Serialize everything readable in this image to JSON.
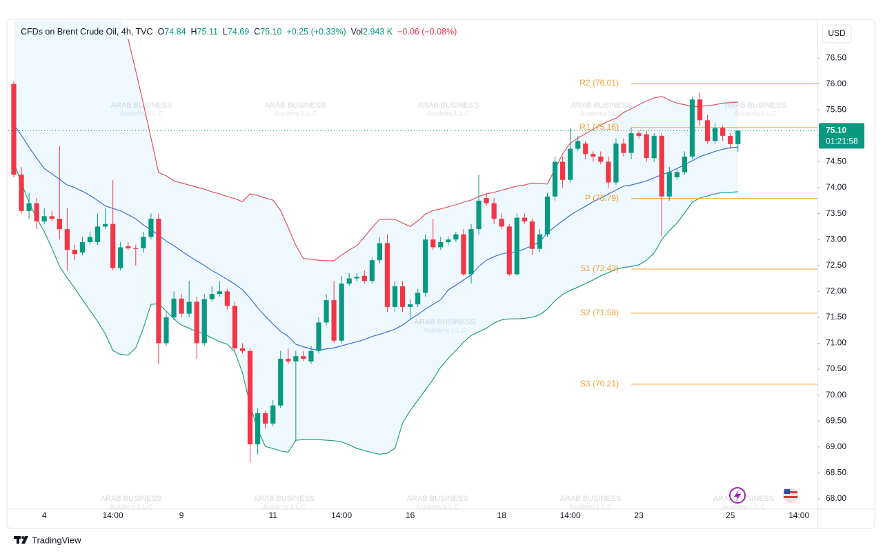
{
  "chart_data": {
    "type": "candlestick",
    "title": "CFDs on Brent Crude Oil, 4h, TVC",
    "stats": [
      {
        "key": "O",
        "value": "74.84",
        "color": "#089981"
      },
      {
        "key": "H",
        "value": "75.11",
        "color": "#089981"
      },
      {
        "key": "L",
        "value": "74.69",
        "color": "#089981"
      },
      {
        "key": "C",
        "value": "75.10",
        "color": "#089981"
      },
      {
        "value": "+0.25 (+0.33%)",
        "color": "#089981"
      },
      {
        "key": "Vol",
        "value": "2.943 K",
        "color": "#089981"
      },
      {
        "value": "−0.06 (−0.08%)",
        "color": "#f23645"
      }
    ],
    "currency": "USD",
    "categories": [
      null,
      null,
      null,
      null,
      "4",
      null,
      null,
      null,
      null,
      null,
      null,
      null,
      null,
      "14:00",
      null,
      null,
      null,
      null,
      null,
      null,
      null,
      null,
      "9",
      null,
      null,
      null,
      null,
      null,
      null,
      null,
      null,
      null,
      null,
      null,
      "11",
      null,
      null,
      null,
      null,
      null,
      null,
      null,
      null,
      "14:00",
      null,
      null,
      null,
      null,
      null,
      null,
      null,
      null,
      "16",
      null,
      null,
      null,
      null,
      null,
      null,
      null,
      null,
      null,
      null,
      null,
      "18",
      null,
      null,
      null,
      null,
      null,
      null,
      null,
      null,
      "14:00",
      null,
      null,
      null,
      null,
      null,
      null,
      null,
      null,
      "23",
      null,
      null,
      null,
      null,
      null,
      null,
      null,
      null,
      null,
      null,
      null,
      "25",
      null,
      null,
      null,
      null,
      null,
      null,
      null,
      null,
      "14:00"
    ],
    "open": [
      76.0,
      74.25,
      73.55,
      73.7,
      73.35,
      73.45,
      73.4,
      73.2,
      72.8,
      72.75,
      72.95,
      72.95,
      73.25,
      73.3,
      72.45,
      72.87,
      72.83,
      72.83,
      73.05,
      73.4,
      71.0,
      71.5,
      71.86,
      71.57,
      71.8,
      71.0,
      71.85,
      71.95,
      72.0,
      71.72,
      70.9,
      70.85,
      69.05,
      69.65,
      69.45,
      69.8,
      70.7,
      70.65,
      70.75,
      70.65,
      70.85,
      71.4,
      71.83,
      71.05,
      72.15,
      72.25,
      72.3,
      72.2,
      72.6,
      72.93,
      71.7,
      72.1,
      71.7,
      71.75,
      71.97,
      73.0,
      72.85,
      72.95,
      73.0,
      73.1,
      72.33,
      73.2,
      73.8,
      73.7,
      73.4,
      73.25,
      72.33,
      73.42,
      73.35,
      72.82,
      73.1,
      73.83,
      74.5,
      74.15,
      74.75,
      74.85,
      74.65,
      74.6,
      74.5,
      74.1,
      74.85,
      74.67,
      75.05,
      75.03,
      74.57,
      75.0,
      73.83,
      74.2,
      74.3,
      74.6,
      75.7,
      75.3,
      74.9,
      75.15,
      75.0,
      74.84,
      null,
      null,
      null,
      null,
      null,
      null,
      null,
      null
    ],
    "high": [
      76.05,
      74.4,
      73.9,
      73.8,
      73.6,
      73.55,
      74.8,
      73.6,
      72.9,
      73.05,
      73.15,
      73.5,
      73.6,
      74.15,
      72.95,
      72.95,
      72.9,
      73.15,
      73.5,
      73.5,
      71.6,
      72.0,
      71.95,
      72.2,
      71.9,
      71.95,
      72.1,
      72.2,
      72.05,
      71.8,
      71.0,
      70.9,
      69.75,
      69.7,
      69.9,
      70.85,
      70.9,
      70.85,
      70.85,
      70.95,
      71.5,
      71.95,
      72.2,
      72.3,
      72.35,
      72.35,
      72.4,
      72.65,
      73.05,
      73.1,
      72.2,
      72.2,
      71.85,
      72.05,
      73.1,
      73.4,
      73.05,
      73.05,
      73.15,
      73.2,
      73.3,
      74.25,
      73.9,
      73.8,
      73.5,
      73.3,
      73.5,
      73.5,
      73.4,
      73.2,
      73.9,
      74.6,
      74.6,
      75.15,
      75.0,
      74.9,
      74.7,
      74.7,
      74.6,
      74.95,
      74.95,
      75.15,
      75.1,
      75.1,
      75.05,
      75.05,
      74.4,
      74.35,
      74.7,
      75.75,
      75.83,
      75.4,
      75.25,
      75.2,
      75.05,
      75.11,
      null,
      null,
      null,
      null,
      null,
      null,
      null,
      null
    ],
    "low": [
      74.2,
      73.5,
      73.4,
      73.2,
      73.3,
      73.35,
      73.0,
      72.4,
      72.6,
      72.7,
      72.9,
      72.9,
      73.2,
      72.4,
      72.4,
      72.8,
      72.5,
      72.75,
      73.0,
      70.6,
      70.95,
      71.45,
      71.5,
      71.5,
      70.7,
      70.95,
      71.8,
      71.9,
      71.65,
      70.85,
      70.8,
      68.7,
      68.85,
      69.35,
      69.4,
      69.75,
      70.6,
      69.1,
      70.65,
      70.6,
      70.8,
      71.35,
      71.0,
      71.0,
      72.1,
      72.2,
      72.15,
      72.15,
      72.55,
      71.6,
      71.6,
      71.6,
      71.45,
      71.7,
      71.9,
      72.8,
      72.8,
      72.9,
      72.95,
      72.3,
      72.15,
      73.1,
      73.65,
      73.3,
      73.2,
      72.3,
      72.3,
      73.3,
      72.7,
      72.75,
      73.05,
      73.75,
      74.0,
      74.1,
      74.7,
      74.55,
      74.5,
      74.45,
      74.0,
      74.05,
      74.6,
      74.55,
      74.95,
      74.5,
      74.5,
      73.05,
      73.75,
      74.15,
      74.25,
      74.55,
      75.2,
      74.85,
      74.85,
      74.9,
      74.75,
      74.69,
      null,
      null,
      null,
      null,
      null,
      null,
      null,
      null
    ],
    "close": [
      74.25,
      73.55,
      73.7,
      73.35,
      73.45,
      73.4,
      73.2,
      72.8,
      72.72,
      72.95,
      73.05,
      73.25,
      73.3,
      72.45,
      72.85,
      72.83,
      72.82,
      73.05,
      73.4,
      71.0,
      71.5,
      71.86,
      71.57,
      71.8,
      71.0,
      71.85,
      71.95,
      72.0,
      71.72,
      70.9,
      70.85,
      69.05,
      69.65,
      69.45,
      69.8,
      70.7,
      70.65,
      70.75,
      70.7,
      70.85,
      71.4,
      71.83,
      71.05,
      72.15,
      72.25,
      72.28,
      72.2,
      72.6,
      72.93,
      71.7,
      72.1,
      71.7,
      71.75,
      71.97,
      73.0,
      72.85,
      72.95,
      73.0,
      73.1,
      72.33,
      73.2,
      73.75,
      73.7,
      73.4,
      73.25,
      72.33,
      73.42,
      73.35,
      72.82,
      73.1,
      73.83,
      74.5,
      74.15,
      74.75,
      74.9,
      74.65,
      74.6,
      74.5,
      74.1,
      74.85,
      74.67,
      75.05,
      75.0,
      74.57,
      75.0,
      73.83,
      74.3,
      74.3,
      74.6,
      75.7,
      75.3,
      74.9,
      75.15,
      75.0,
      74.84,
      75.1,
      null,
      null,
      null,
      null,
      null,
      null,
      null,
      null
    ],
    "up_color": "#089981",
    "down_color": "#f23645",
    "bands": [
      {
        "color": "#e0535c",
        "values": [
          null,
          null,
          null,
          null,
          null,
          null,
          null,
          null,
          null,
          null,
          null,
          null,
          null,
          null,
          null,
          76.87,
          76.25,
          75.62,
          74.96,
          74.29,
          74.23,
          74.13,
          74.09,
          74.05,
          74.01,
          73.97,
          73.92,
          73.88,
          73.83,
          73.79,
          73.73,
          73.88,
          73.85,
          73.8,
          73.76,
          73.56,
          73.23,
          72.89,
          72.63,
          72.62,
          72.6,
          72.59,
          72.59,
          72.7,
          72.8,
          72.88,
          73.05,
          73.23,
          73.39,
          73.39,
          73.39,
          73.32,
          73.25,
          73.36,
          73.49,
          73.56,
          73.59,
          73.63,
          73.67,
          73.72,
          73.76,
          73.83,
          73.88,
          73.91,
          73.95,
          73.99,
          74.03,
          74.05,
          74.09,
          74.08,
          74.07,
          74.36,
          74.65,
          74.86,
          74.96,
          75.04,
          75.13,
          75.21,
          75.28,
          75.34,
          75.45,
          75.52,
          75.6,
          75.67,
          75.73,
          75.76,
          75.69,
          75.63,
          75.6,
          75.56,
          75.57,
          75.58,
          75.6,
          75.63,
          75.64,
          75.65,
          null,
          null,
          null,
          null,
          null,
          null,
          null,
          null
        ]
      },
      {
        "color": "#3b6fd8",
        "values": [
          75.22,
          75.01,
          74.78,
          74.57,
          74.37,
          74.27,
          74.16,
          74.05,
          74.0,
          73.93,
          73.85,
          73.75,
          73.65,
          73.6,
          73.55,
          73.48,
          73.4,
          73.28,
          73.19,
          73.08,
          72.97,
          72.88,
          72.78,
          72.68,
          72.59,
          72.5,
          72.4,
          72.32,
          72.23,
          72.14,
          72.03,
          71.87,
          71.68,
          71.52,
          71.37,
          71.23,
          71.13,
          70.98,
          70.93,
          70.89,
          70.86,
          70.89,
          70.91,
          70.95,
          70.99,
          71.03,
          71.07,
          71.13,
          71.17,
          71.22,
          71.27,
          71.35,
          71.46,
          71.55,
          71.66,
          71.75,
          71.84,
          72.03,
          72.12,
          72.22,
          72.32,
          72.48,
          72.6,
          72.67,
          72.72,
          72.75,
          72.76,
          72.82,
          72.88,
          72.96,
          73.13,
          73.25,
          73.36,
          73.47,
          73.56,
          73.64,
          73.73,
          73.8,
          73.88,
          73.95,
          74.03,
          74.05,
          74.09,
          74.13,
          74.19,
          74.25,
          74.3,
          74.37,
          74.44,
          74.52,
          74.6,
          74.65,
          74.7,
          74.74,
          74.77,
          74.78,
          null,
          null,
          null,
          null,
          null,
          null,
          null,
          null
        ]
      },
      {
        "color": "#23a07a",
        "values": [
          74.49,
          74.09,
          73.71,
          73.41,
          73.15,
          72.83,
          72.48,
          72.26,
          72.06,
          71.84,
          71.63,
          71.42,
          71.18,
          70.86,
          70.78,
          70.77,
          70.91,
          71.29,
          71.75,
          71.76,
          71.62,
          71.47,
          71.35,
          71.29,
          71.22,
          71.18,
          71.1,
          71.03,
          70.98,
          70.83,
          70.43,
          69.81,
          69.33,
          69.01,
          68.97,
          68.92,
          68.9,
          69.13,
          69.14,
          69.14,
          69.14,
          69.13,
          69.12,
          69.1,
          69.04,
          68.97,
          68.93,
          68.89,
          68.86,
          68.88,
          68.97,
          69.46,
          69.7,
          69.9,
          70.1,
          70.3,
          70.54,
          70.71,
          70.86,
          71.02,
          71.15,
          71.22,
          71.29,
          71.39,
          71.45,
          71.47,
          71.47,
          71.48,
          71.5,
          71.55,
          71.66,
          71.82,
          71.94,
          72.02,
          72.08,
          72.15,
          72.22,
          72.3,
          72.36,
          72.43,
          72.46,
          72.48,
          72.51,
          72.6,
          72.74,
          73.0,
          73.17,
          73.32,
          73.51,
          73.72,
          73.8,
          73.84,
          73.88,
          73.91,
          73.91,
          73.92,
          null,
          null,
          null,
          null,
          null,
          null,
          null,
          null
        ]
      }
    ],
    "band_fill": "#2196f3",
    "pivot_color": "#f0a030",
    "pivots": [
      {
        "value": 76.01,
        "label": "R2 (76.01)"
      },
      {
        "value": 75.16,
        "label": "R1 (75.16)"
      },
      {
        "value": 73.79,
        "label": "P (73.79)"
      },
      {
        "value": 72.43,
        "label": "S1 (72.43)"
      },
      {
        "value": 71.58,
        "label": "S2 (71.58)"
      },
      {
        "value": 70.21,
        "label": "S3 (70.21)"
      }
    ],
    "last_price": {
      "value": 75.1,
      "label": "75.10"
    },
    "countdown": "01:21:58",
    "price_tag_color": "#089981",
    "ylim": [
      67.8,
      77.22
    ],
    "yticks": [
      {
        "value": 68,
        "label": "68.00"
      },
      {
        "value": 68.5,
        "label": "68.50"
      },
      {
        "value": 69,
        "label": "69.00"
      },
      {
        "value": 69.5,
        "label": "69.50"
      },
      {
        "value": 70,
        "label": "70.00"
      },
      {
        "value": 70.5,
        "label": "70.50"
      },
      {
        "value": 71,
        "label": "71.00"
      },
      {
        "value": 71.5,
        "label": "71.50"
      },
      {
        "value": 72,
        "label": "72.00"
      },
      {
        "value": 72.5,
        "label": "72.50"
      },
      {
        "value": 73,
        "label": "73.00"
      },
      {
        "value": 73.5,
        "label": "73.50"
      },
      {
        "value": 74,
        "label": "74.00"
      },
      {
        "value": 74.5,
        "label": "74.50"
      },
      {
        "value": 75,
        "label": "75.00"
      },
      {
        "value": 75.5,
        "label": "75.50"
      },
      {
        "value": 76,
        "label": "76.00"
      },
      {
        "value": 76.5,
        "label": "76.50"
      }
    ],
    "grid": false,
    "watermark": {
      "title": "ARAB BUSINESS",
      "subtitle": "Academy L.L.C"
    },
    "brand": "TradingView"
  }
}
